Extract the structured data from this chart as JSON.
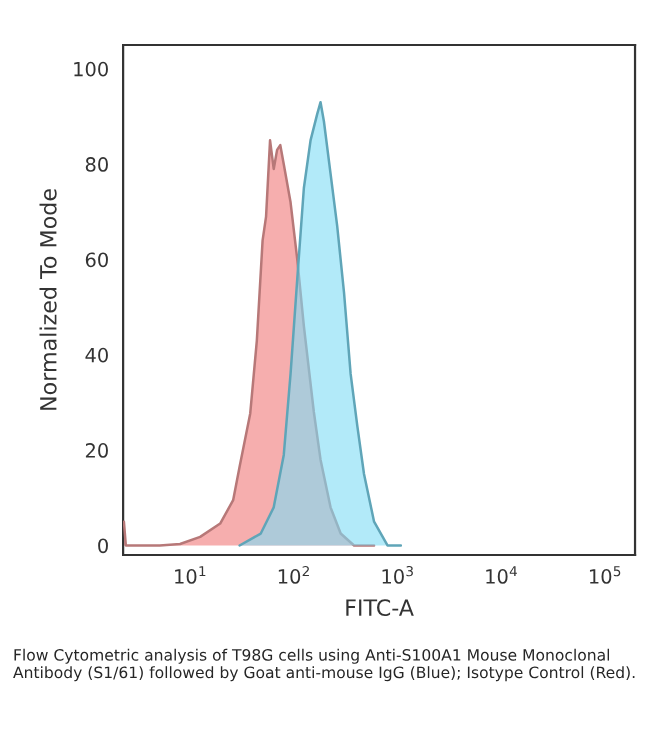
{
  "chart_data": {
    "type": "area",
    "xlabel": "FITC-A",
    "ylabel": "Normalized To Mode",
    "log": "x",
    "xlim": [
      2.26,
      195000
    ],
    "ylim": [
      -2,
      105
    ],
    "xticks": [
      {
        "value": 10,
        "label": "10$^{1}$"
      },
      {
        "value": 100,
        "label": "10$^{2}$"
      },
      {
        "value": 1000,
        "label": "10$^{3}$"
      },
      {
        "value": 10000,
        "label": "10$^{4}$"
      },
      {
        "value": 100000,
        "label": "10$^{5}$"
      }
    ],
    "yticks": [
      0,
      20,
      40,
      60,
      80,
      100
    ],
    "grid": false,
    "series": [
      {
        "color": "#f4a0a0",
        "x": [
          2.3,
          2.4,
          2.8,
          5.1,
          8,
          12.5,
          19.5,
          26,
          30,
          38,
          44,
          50,
          54,
          59,
          64,
          69,
          74,
          80,
          93,
          108,
          125,
          156,
          181,
          226,
          283,
          381,
          594
        ],
        "values": [
          5,
          0,
          0,
          0,
          0.3,
          1.8,
          4.6,
          9.5,
          16.5,
          27.7,
          43,
          64,
          69,
          85,
          79,
          83,
          84,
          80,
          72,
          60,
          46,
          28,
          18,
          8,
          2.5,
          0,
          0
        ]
      },
      {
        "color": "#7fdcf5",
        "x": [
          30,
          48,
          64,
          80,
          93,
          108,
          125,
          145,
          168,
          181,
          195,
          226,
          262,
          305,
          353,
          410,
          475,
          594,
          800,
          1077
        ],
        "values": [
          0,
          2.5,
          8,
          19,
          36,
          56,
          75,
          85,
          90.5,
          93,
          89,
          78,
          67,
          53,
          36,
          25,
          15,
          5,
          0,
          0
        ]
      }
    ],
    "annotations": [
      "Flow Cytometric analysis of T98G cells using Anti-S100A1 Mouse Monoclonal Antibody (S1/61) followed by Goat anti-mouse IgG (Blue); Isotype Control (Red)."
    ]
  }
}
